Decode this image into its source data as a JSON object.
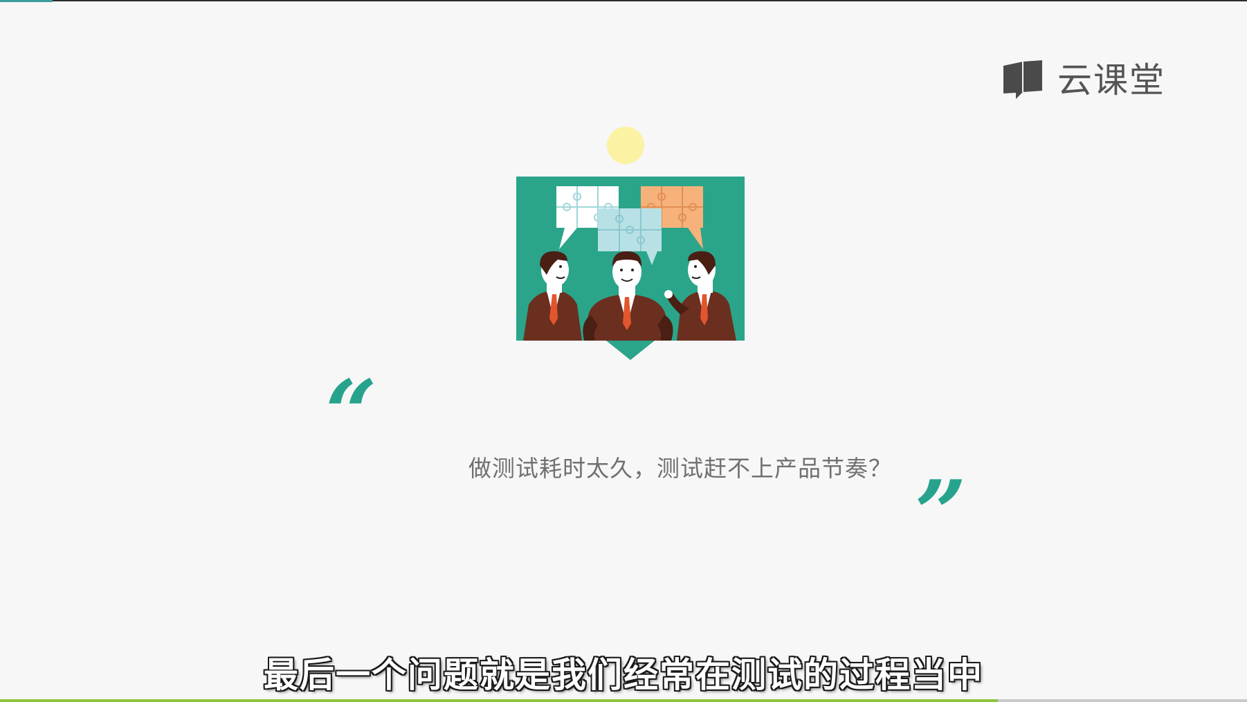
{
  "logo": {
    "text": "云课堂",
    "icon": "book-icon"
  },
  "slide": {
    "question": "做测试耗时太久，测试赶不上产品节奏？",
    "quote_open": "“",
    "quote_close": "”",
    "colors": {
      "accent": "#27a38d",
      "panel": "#2aa58a",
      "sun": "#fbf3a3"
    }
  },
  "subtitle": {
    "text": "最后一个问题就是我们经常在测试的过程当中"
  },
  "progress": {
    "fraction": 0.8,
    "color": "#8cc63f"
  }
}
